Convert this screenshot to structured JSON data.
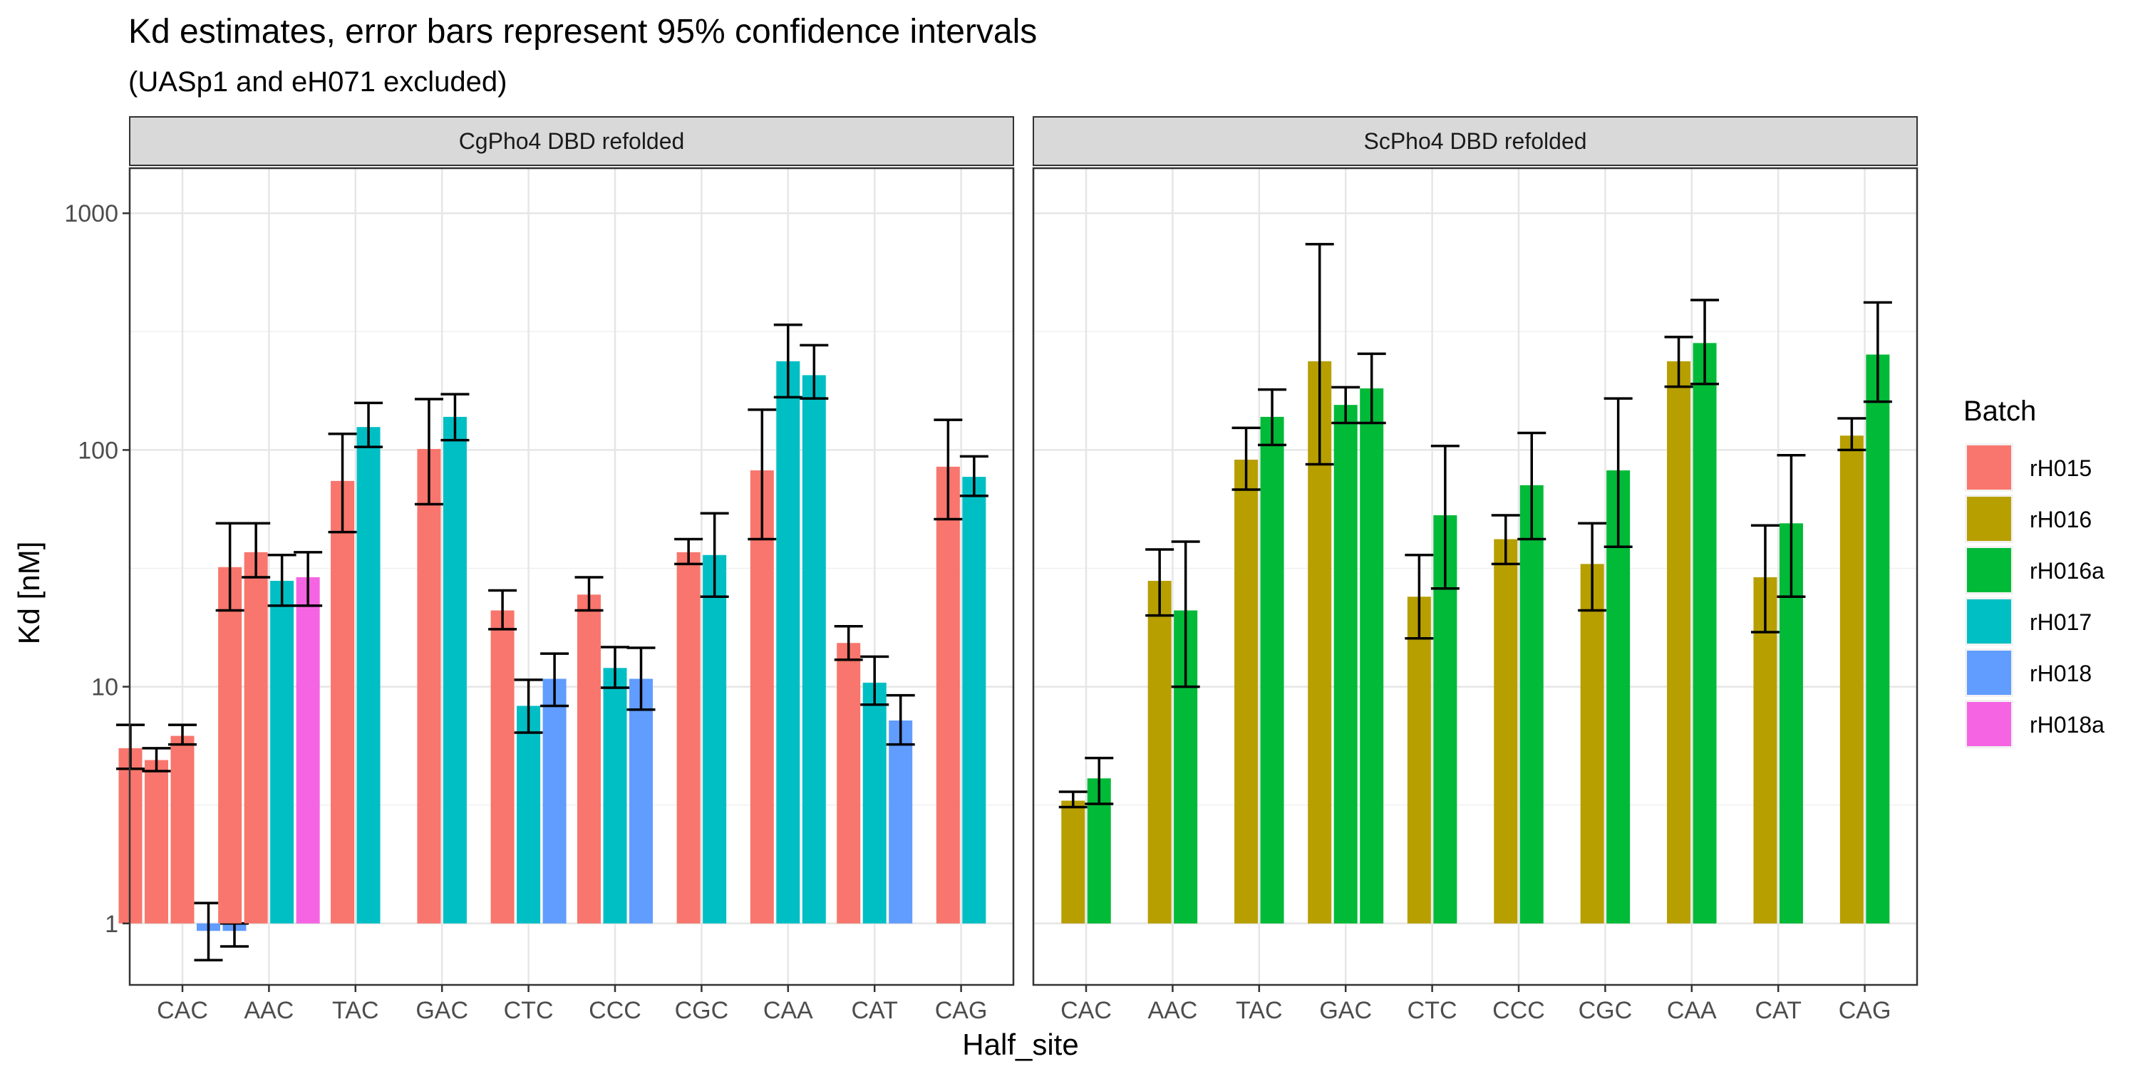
{
  "chart_data": {
    "type": "bar",
    "title": "Kd estimates, error bars represent 95% confidence intervals",
    "subtitle": "(UASp1 and eH071 excluded)",
    "xlabel": "Half_site",
    "ylabel": "Kd [nM]",
    "y_scale": "log10",
    "ylim": [
      0.55,
      1550
    ],
    "y_ticks": [
      1,
      10,
      100,
      1000
    ],
    "y_tick_labels": [
      "1",
      "10",
      "100",
      "1000"
    ],
    "grid": true,
    "legend_position": "right",
    "legend_title": "Batch",
    "categories": [
      "CAC",
      "AAC",
      "TAC",
      "GAC",
      "CTC",
      "CCC",
      "CGC",
      "CAA",
      "CAT",
      "CAG"
    ],
    "batches": [
      {
        "name": "rH015",
        "color": "#F8766D"
      },
      {
        "name": "rH016",
        "color": "#B79F00"
      },
      {
        "name": "rH016a",
        "color": "#00BA38"
      },
      {
        "name": "rH017",
        "color": "#00BFC4"
      },
      {
        "name": "rH018",
        "color": "#619CFF"
      },
      {
        "name": "rH018a",
        "color": "#F564E3"
      }
    ],
    "panels": [
      {
        "name": "CgPho4 DBD refolded",
        "groups": [
          {
            "category": "CAC",
            "bars": [
              {
                "batch": "rH015",
                "value": 5.5,
                "lo": 4.5,
                "hi": 6.9
              },
              {
                "batch": "rH015",
                "value": 4.9,
                "lo": 4.4,
                "hi": 5.5
              },
              {
                "batch": "rH015",
                "value": 6.2,
                "lo": 5.7,
                "hi": 6.9
              },
              {
                "batch": "rH018",
                "value": 0.93,
                "lo": 0.7,
                "hi": 1.22
              },
              {
                "batch": "rH018",
                "value": 0.93,
                "lo": 0.8,
                "hi": 1.0
              }
            ]
          },
          {
            "category": "AAC",
            "bars": [
              {
                "batch": "rH015",
                "value": 32,
                "lo": 21,
                "hi": 49
              },
              {
                "batch": "rH015",
                "value": 37,
                "lo": 29,
                "hi": 49
              },
              {
                "batch": "rH017",
                "value": 28,
                "lo": 22,
                "hi": 36
              },
              {
                "batch": "rH018a",
                "value": 29,
                "lo": 22,
                "hi": 37
              }
            ]
          },
          {
            "category": "TAC",
            "bars": [
              {
                "batch": "rH015",
                "value": 74,
                "lo": 45,
                "hi": 117
              },
              {
                "batch": "rH017",
                "value": 125,
                "lo": 103,
                "hi": 158
              }
            ]
          },
          {
            "category": "GAC",
            "bars": [
              {
                "batch": "rH015",
                "value": 101,
                "lo": 59,
                "hi": 164
              },
              {
                "batch": "rH017",
                "value": 138,
                "lo": 110,
                "hi": 172
              }
            ]
          },
          {
            "category": "CTC",
            "bars": [
              {
                "batch": "rH015",
                "value": 21,
                "lo": 17.5,
                "hi": 25.5
              },
              {
                "batch": "rH017",
                "value": 8.3,
                "lo": 6.4,
                "hi": 10.7
              },
              {
                "batch": "rH018",
                "value": 10.8,
                "lo": 8.3,
                "hi": 13.8
              }
            ]
          },
          {
            "category": "CCC",
            "bars": [
              {
                "batch": "rH015",
                "value": 24.5,
                "lo": 21,
                "hi": 29
              },
              {
                "batch": "rH017",
                "value": 12,
                "lo": 9.9,
                "hi": 14.7
              },
              {
                "batch": "rH018",
                "value": 10.8,
                "lo": 8,
                "hi": 14.6
              }
            ]
          },
          {
            "category": "CGC",
            "bars": [
              {
                "batch": "rH015",
                "value": 37,
                "lo": 33,
                "hi": 42
              },
              {
                "batch": "rH017",
                "value": 36,
                "lo": 24,
                "hi": 54
              }
            ]
          },
          {
            "category": "CAA",
            "bars": [
              {
                "batch": "rH015",
                "value": 82,
                "lo": 42,
                "hi": 148
              },
              {
                "batch": "rH017",
                "value": 237,
                "lo": 167,
                "hi": 338
              },
              {
                "batch": "rH017",
                "value": 207,
                "lo": 165,
                "hi": 277
              }
            ]
          },
          {
            "category": "CAT",
            "bars": [
              {
                "batch": "rH015",
                "value": 15.3,
                "lo": 13,
                "hi": 18
              },
              {
                "batch": "rH017",
                "value": 10.4,
                "lo": 8.4,
                "hi": 13.4
              },
              {
                "batch": "rH018",
                "value": 7.2,
                "lo": 5.7,
                "hi": 9.2
              }
            ]
          },
          {
            "category": "CAG",
            "bars": [
              {
                "batch": "rH015",
                "value": 85,
                "lo": 51,
                "hi": 134
              },
              {
                "batch": "rH017",
                "value": 77,
                "lo": 64,
                "hi": 94
              }
            ]
          }
        ]
      },
      {
        "name": "ScPho4 DBD refolded",
        "groups": [
          {
            "category": "CAC",
            "bars": [
              {
                "batch": "rH016",
                "value": 3.3,
                "lo": 3.1,
                "hi": 3.6
              },
              {
                "batch": "rH016a",
                "value": 4.1,
                "lo": 3.2,
                "hi": 5.0
              }
            ]
          },
          {
            "category": "AAC",
            "bars": [
              {
                "batch": "rH016",
                "value": 28,
                "lo": 20,
                "hi": 38
              },
              {
                "batch": "rH016a",
                "value": 21,
                "lo": 10,
                "hi": 41
              }
            ]
          },
          {
            "category": "TAC",
            "bars": [
              {
                "batch": "rH016",
                "value": 91,
                "lo": 68,
                "hi": 124
              },
              {
                "batch": "rH016a",
                "value": 138,
                "lo": 105,
                "hi": 180
              }
            ]
          },
          {
            "category": "GAC",
            "bars": [
              {
                "batch": "rH016",
                "value": 237,
                "lo": 87,
                "hi": 740
              },
              {
                "batch": "rH016a",
                "value": 155,
                "lo": 130,
                "hi": 184
              },
              {
                "batch": "rH016a",
                "value": 182,
                "lo": 130,
                "hi": 255
              }
            ]
          },
          {
            "category": "CTC",
            "bars": [
              {
                "batch": "rH016",
                "value": 24,
                "lo": 16,
                "hi": 36
              },
              {
                "batch": "rH016a",
                "value": 53,
                "lo": 26,
                "hi": 104
              }
            ]
          },
          {
            "category": "CCC",
            "bars": [
              {
                "batch": "rH016",
                "value": 42,
                "lo": 33,
                "hi": 53
              },
              {
                "batch": "rH016a",
                "value": 71,
                "lo": 42,
                "hi": 118
              }
            ]
          },
          {
            "category": "CGC",
            "bars": [
              {
                "batch": "rH016",
                "value": 33,
                "lo": 21,
                "hi": 49
              },
              {
                "batch": "rH016a",
                "value": 82,
                "lo": 39,
                "hi": 165
              }
            ]
          },
          {
            "category": "CAA",
            "bars": [
              {
                "batch": "rH016",
                "value": 237,
                "lo": 185,
                "hi": 300
              },
              {
                "batch": "rH016a",
                "value": 283,
                "lo": 190,
                "hi": 430
              }
            ]
          },
          {
            "category": "CAT",
            "bars": [
              {
                "batch": "rH016",
                "value": 29,
                "lo": 17,
                "hi": 48
              },
              {
                "batch": "rH016a",
                "value": 49,
                "lo": 24,
                "hi": 95
              }
            ]
          },
          {
            "category": "CAG",
            "bars": [
              {
                "batch": "rH016",
                "value": 115,
                "lo": 100,
                "hi": 136
              },
              {
                "batch": "rH016a",
                "value": 253,
                "lo": 160,
                "hi": 420
              }
            ]
          }
        ]
      }
    ]
  }
}
